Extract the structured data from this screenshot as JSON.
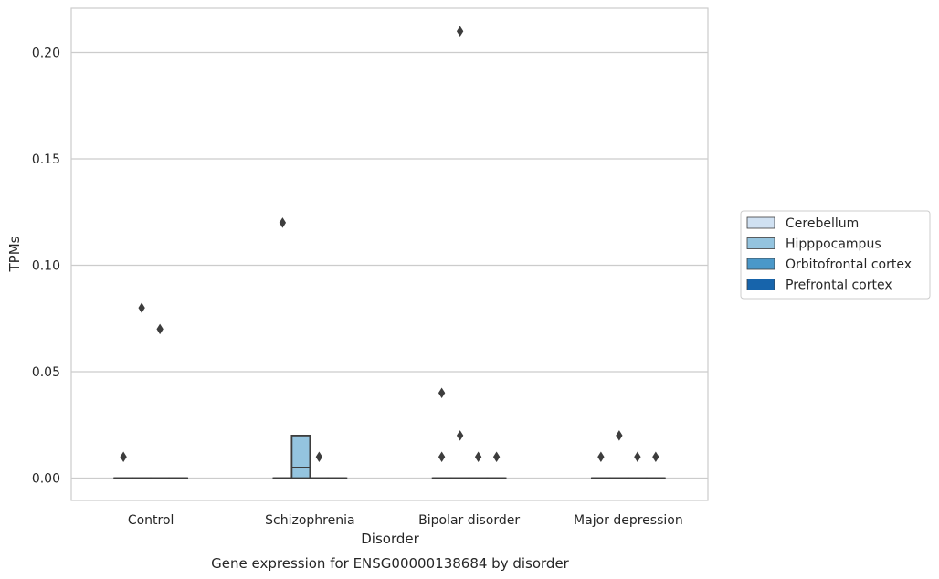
{
  "chart_data": {
    "type": "box",
    "title": "",
    "caption": "Gene expression for ENSG00000138684 by disorder",
    "xlabel": "Disorder",
    "ylabel": "TPMs",
    "ylim": [
      -0.01,
      0.22
    ],
    "yticks": [
      0.0,
      0.05,
      0.1,
      0.15,
      0.2
    ],
    "ytick_labels": [
      "0.00",
      "0.05",
      "0.10",
      "0.15",
      "0.20"
    ],
    "grid": "horizontal",
    "legend_position": "right",
    "categories": [
      "Control",
      "Schizophrenia",
      "Bipolar disorder",
      "Major depression"
    ],
    "series": [
      {
        "name": "Cerebellum",
        "color": "#d0e1f2",
        "boxes": [
          {
            "q1": 0.0,
            "median": 0.0,
            "q3": 0.0,
            "whisker_low": 0.0,
            "whisker_high": 0.0,
            "outliers": [
              0.01
            ]
          },
          {
            "q1": 0.0,
            "median": 0.0,
            "q3": 0.0,
            "whisker_low": 0.0,
            "whisker_high": 0.0,
            "outliers": [
              0.12
            ]
          },
          {
            "q1": 0.0,
            "median": 0.0,
            "q3": 0.0,
            "whisker_low": 0.0,
            "whisker_high": 0.0,
            "outliers": [
              0.01,
              0.04
            ]
          },
          {
            "q1": 0.0,
            "median": 0.0,
            "q3": 0.0,
            "whisker_low": 0.0,
            "whisker_high": 0.0,
            "outliers": [
              0.01
            ]
          }
        ]
      },
      {
        "name": "Hipppocampus",
        "color": "#94c4df",
        "boxes": [
          {
            "q1": 0.0,
            "median": 0.0,
            "q3": 0.0,
            "whisker_low": 0.0,
            "whisker_high": 0.0,
            "outliers": [
              0.08
            ]
          },
          {
            "q1": 0.0,
            "median": 0.005,
            "q3": 0.02,
            "whisker_low": 0.0,
            "whisker_high": 0.02,
            "outliers": []
          },
          {
            "q1": 0.0,
            "median": 0.0,
            "q3": 0.0,
            "whisker_low": 0.0,
            "whisker_high": 0.0,
            "outliers": [
              0.02,
              0.21
            ]
          },
          {
            "q1": 0.0,
            "median": 0.0,
            "q3": 0.0,
            "whisker_low": 0.0,
            "whisker_high": 0.0,
            "outliers": [
              0.02
            ]
          }
        ]
      },
      {
        "name": "Orbitofrontal cortex",
        "color": "#4a98c9",
        "boxes": [
          {
            "q1": 0.0,
            "median": 0.0,
            "q3": 0.0,
            "whisker_low": 0.0,
            "whisker_high": 0.0,
            "outliers": [
              0.07
            ]
          },
          {
            "q1": 0.0,
            "median": 0.0,
            "q3": 0.0,
            "whisker_low": 0.0,
            "whisker_high": 0.0,
            "outliers": [
              0.01
            ]
          },
          {
            "q1": 0.0,
            "median": 0.0,
            "q3": 0.0,
            "whisker_low": 0.0,
            "whisker_high": 0.0,
            "outliers": [
              0.01
            ]
          },
          {
            "q1": 0.0,
            "median": 0.0,
            "q3": 0.0,
            "whisker_low": 0.0,
            "whisker_high": 0.0,
            "outliers": [
              0.01
            ]
          }
        ]
      },
      {
        "name": "Prefrontal cortex",
        "color": "#1764ab",
        "boxes": [
          {
            "q1": 0.0,
            "median": 0.0,
            "q3": 0.0,
            "whisker_low": 0.0,
            "whisker_high": 0.0,
            "outliers": []
          },
          {
            "q1": 0.0,
            "median": 0.0,
            "q3": 0.0,
            "whisker_low": 0.0,
            "whisker_high": 0.0,
            "outliers": []
          },
          {
            "q1": 0.0,
            "median": 0.0,
            "q3": 0.0,
            "whisker_low": 0.0,
            "whisker_high": 0.0,
            "outliers": [
              0.01
            ]
          },
          {
            "q1": 0.0,
            "median": 0.0,
            "q3": 0.0,
            "whisker_low": 0.0,
            "whisker_high": 0.0,
            "outliers": [
              0.01
            ]
          }
        ]
      }
    ]
  }
}
